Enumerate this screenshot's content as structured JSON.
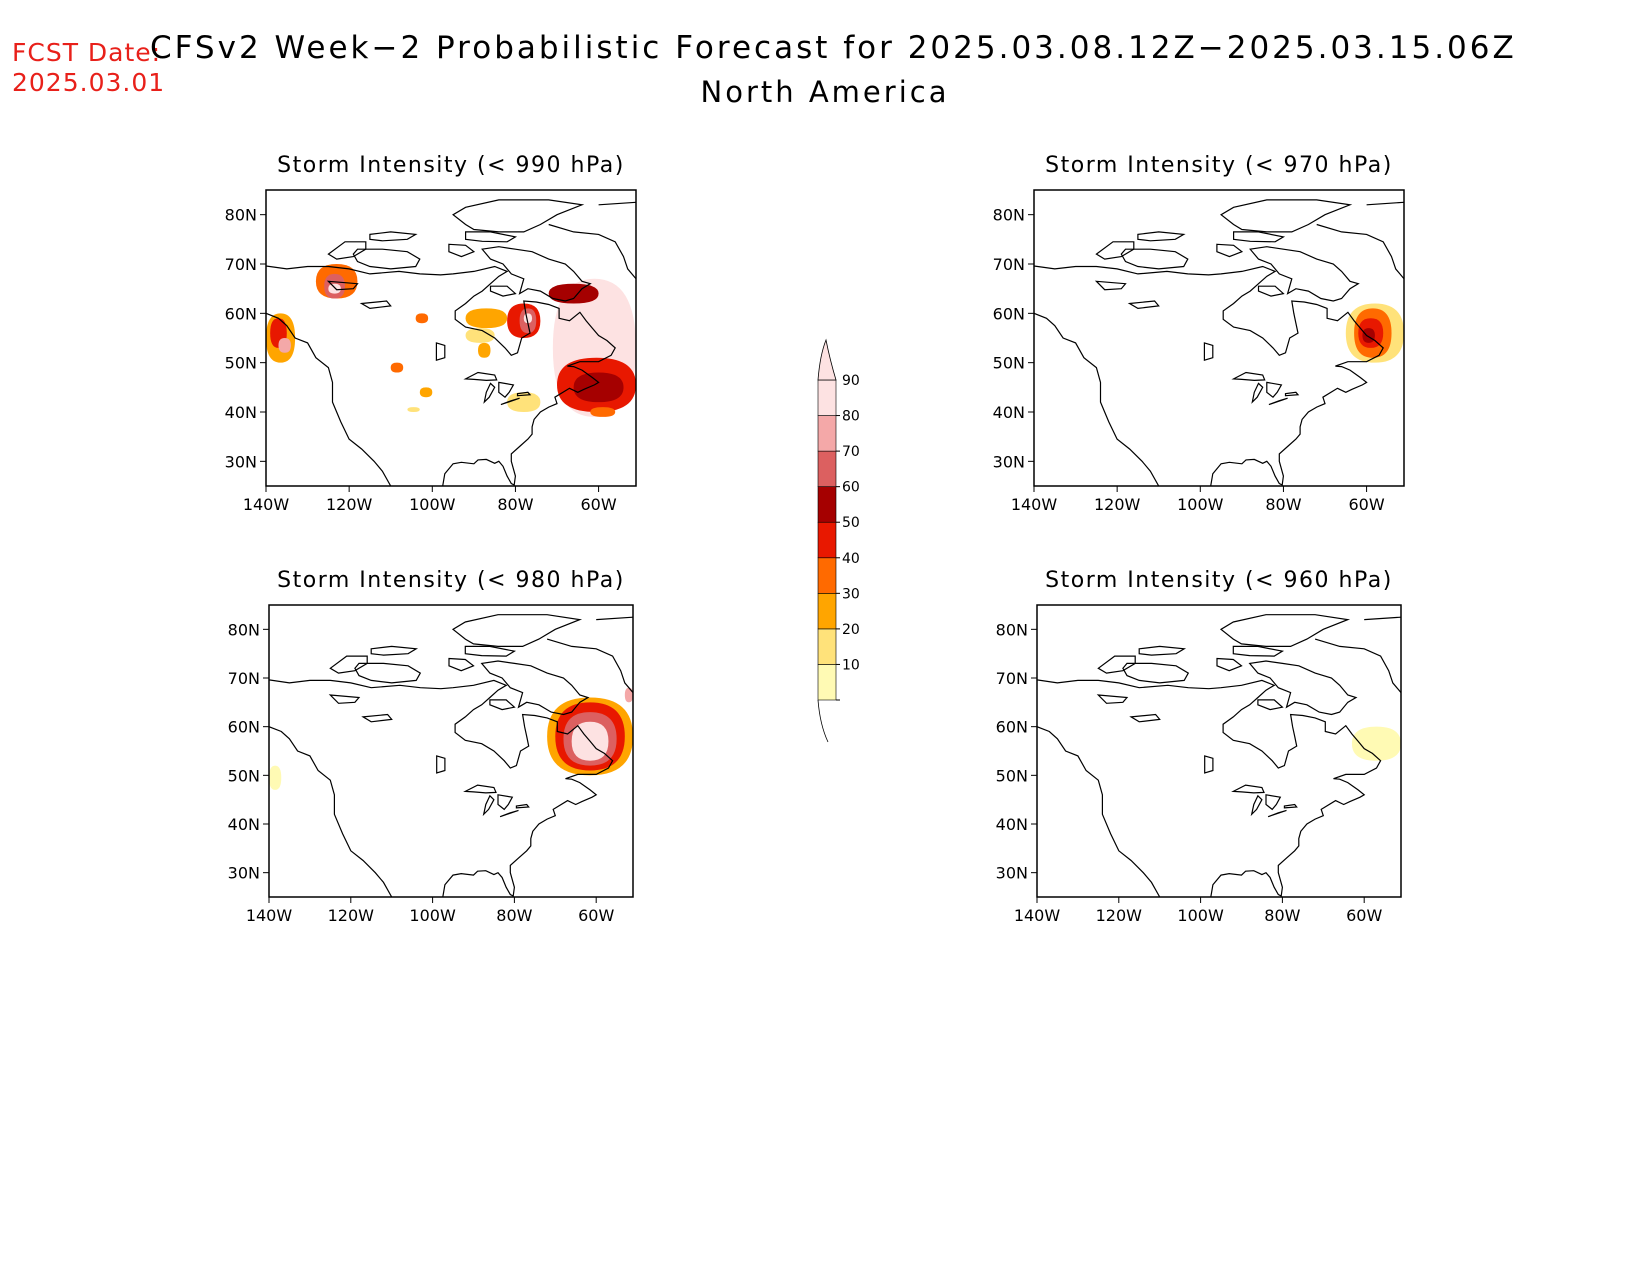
{
  "header": {
    "fcst_label": "FCST Date:",
    "fcst_date": "2025.03.01",
    "title": "CFSv2 Week−2 Probabilistic Forecast for 2025.03.08.12Z−2025.03.15.06Z",
    "region": "North America"
  },
  "panels": [
    {
      "id": "p990",
      "title": "Storm Intensity (< 990 hPa)",
      "threshold_hpa": 990
    },
    {
      "id": "p970",
      "title": "Storm Intensity (< 970 hPa)",
      "threshold_hpa": 970
    },
    {
      "id": "p980",
      "title": "Storm Intensity (< 980 hPa)",
      "threshold_hpa": 980
    },
    {
      "id": "p960",
      "title": "Storm Intensity (< 960 hPa)",
      "threshold_hpa": 960
    }
  ],
  "axes": {
    "lon_ticks": [
      -140,
      -120,
      -100,
      -80,
      -60
    ],
    "lon_labels": [
      "140W",
      "120W",
      "100W",
      "80W",
      "60W"
    ],
    "lat_ticks": [
      30,
      40,
      50,
      60,
      70,
      80
    ],
    "lat_labels": [
      "30N",
      "40N",
      "50N",
      "60N",
      "70N",
      "80N"
    ],
    "lon_range": [
      -140,
      -51
    ],
    "lat_range": [
      25,
      85
    ]
  },
  "colorbar": {
    "levels": [
      10,
      20,
      30,
      40,
      50,
      60,
      70,
      80,
      90
    ],
    "labels": [
      "10",
      "20",
      "30",
      "40",
      "50",
      "60",
      "70",
      "80",
      "90"
    ],
    "colors": [
      "#fffab4",
      "#ffe27a",
      "#ffa500",
      "#ff6a00",
      "#e81800",
      "#a50000",
      "#dc6060",
      "#f4a8a8",
      "#fde2e2"
    ]
  },
  "probability_regions": {
    "p990": [
      {
        "lon": [
          -140,
          -133
        ],
        "lat": [
          50,
          60
        ],
        "level": 30
      },
      {
        "lon": [
          -139,
          -135
        ],
        "lat": [
          53,
          59
        ],
        "level": 50
      },
      {
        "lon": [
          -137,
          -134
        ],
        "lat": [
          52,
          55
        ],
        "level": 80
      },
      {
        "lon": [
          -128,
          -118
        ],
        "lat": [
          63,
          70
        ],
        "level": 40
      },
      {
        "lon": [
          -126,
          -121
        ],
        "lat": [
          63,
          68
        ],
        "level": 70
      },
      {
        "lon": [
          -125,
          -122
        ],
        "lat": [
          64,
          66
        ],
        "level": 90
      },
      {
        "lon": [
          -104,
          -101
        ],
        "lat": [
          58,
          60
        ],
        "level": 40
      },
      {
        "lon": [
          -92,
          -85
        ],
        "lat": [
          54,
          57
        ],
        "level": 20
      },
      {
        "lon": [
          -89,
          -86
        ],
        "lat": [
          51,
          54
        ],
        "level": 30
      },
      {
        "lon": [
          -103,
          -100
        ],
        "lat": [
          43,
          45
        ],
        "level": 30
      },
      {
        "lon": [
          -92,
          -82
        ],
        "lat": [
          57,
          61
        ],
        "level": 30
      },
      {
        "lon": [
          -82,
          -74
        ],
        "lat": [
          55,
          62
        ],
        "level": 50
      },
      {
        "lon": [
          -79,
          -75
        ],
        "lat": [
          56,
          61
        ],
        "level": 70
      },
      {
        "lon": [
          -78,
          -76
        ],
        "lat": [
          58,
          60
        ],
        "level": 90
      },
      {
        "lon": [
          -71,
          -51
        ],
        "lat": [
          39,
          67
        ],
        "level": 90
      },
      {
        "lon": [
          -72,
          -60
        ],
        "lat": [
          62,
          66
        ],
        "level": 60
      },
      {
        "lon": [
          -70,
          -51
        ],
        "lat": [
          40,
          51
        ],
        "level": 50
      },
      {
        "lon": [
          -66,
          -54
        ],
        "lat": [
          42,
          48
        ],
        "level": 60
      },
      {
        "lon": [
          -62,
          -56
        ],
        "lat": [
          39,
          41
        ],
        "level": 40
      },
      {
        "lon": [
          -82,
          -74
        ],
        "lat": [
          40,
          44
        ],
        "level": 20
      },
      {
        "lon": [
          -110,
          -107
        ],
        "lat": [
          48,
          50
        ],
        "level": 40
      },
      {
        "lon": [
          -106,
          -103
        ],
        "lat": [
          40,
          41
        ],
        "level": 20
      }
    ],
    "p970": [
      {
        "lon": [
          -65,
          -51
        ],
        "lat": [
          50,
          62
        ],
        "level": 20
      },
      {
        "lon": [
          -63,
          -54
        ],
        "lat": [
          51,
          61
        ],
        "level": 40
      },
      {
        "lon": [
          -62,
          -56
        ],
        "lat": [
          53,
          59
        ],
        "level": 50
      },
      {
        "lon": [
          -61,
          -58
        ],
        "lat": [
          54,
          57
        ],
        "level": 60
      }
    ],
    "p980": [
      {
        "lon": [
          -72,
          -51
        ],
        "lat": [
          50,
          66
        ],
        "level": 30
      },
      {
        "lon": [
          -70,
          -53
        ],
        "lat": [
          51,
          65
        ],
        "level": 50
      },
      {
        "lon": [
          -68,
          -55
        ],
        "lat": [
          52,
          63
        ],
        "level": 70
      },
      {
        "lon": [
          -66,
          -57
        ],
        "lat": [
          53,
          61
        ],
        "level": 90
      },
      {
        "lon": [
          -53,
          -51
        ],
        "lat": [
          65,
          68
        ],
        "level": 80
      },
      {
        "lon": [
          -140,
          -137
        ],
        "lat": [
          47,
          52
        ],
        "level": 10
      }
    ],
    "p960": [
      {
        "lon": [
          -63,
          -51
        ],
        "lat": [
          53,
          60
        ],
        "level": 10
      }
    ]
  }
}
